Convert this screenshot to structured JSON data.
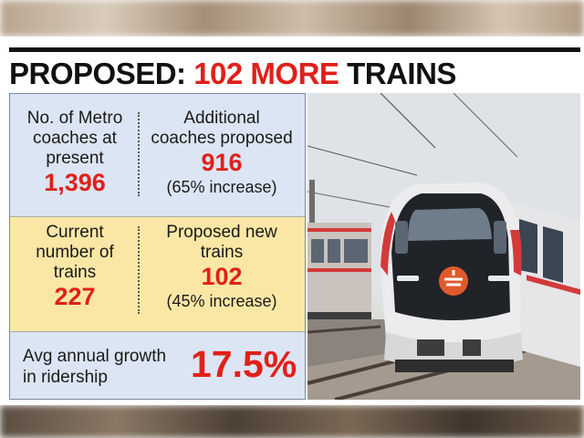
{
  "headline": {
    "prefix": "PROPOSED: ",
    "accent": "102 MORE",
    "suffix": " TRAINS"
  },
  "stats": {
    "coaches_present": {
      "label_l1": "No. of Metro",
      "label_l2": "coaches at",
      "label_l3": "present",
      "value": "1,396"
    },
    "coaches_proposed": {
      "label_l1": "Additional",
      "label_l2": "coaches proposed",
      "value": "916",
      "note": "(65% increase)"
    },
    "trains_current": {
      "label_l1": "Current",
      "label_l2": "number of",
      "label_l3": "trains",
      "value": "227"
    },
    "trains_proposed": {
      "label_l1": "Proposed new",
      "label_l2": "trains",
      "value": "102",
      "note": "(45% increase)"
    },
    "growth": {
      "label_l1": "Avg annual growth",
      "label_l2": "in ridership",
      "value": "17.5%"
    }
  },
  "colors": {
    "accent": "#e0201a",
    "blue_cell": "#dce5f3",
    "yellow_cell": "#fbe7a5"
  }
}
